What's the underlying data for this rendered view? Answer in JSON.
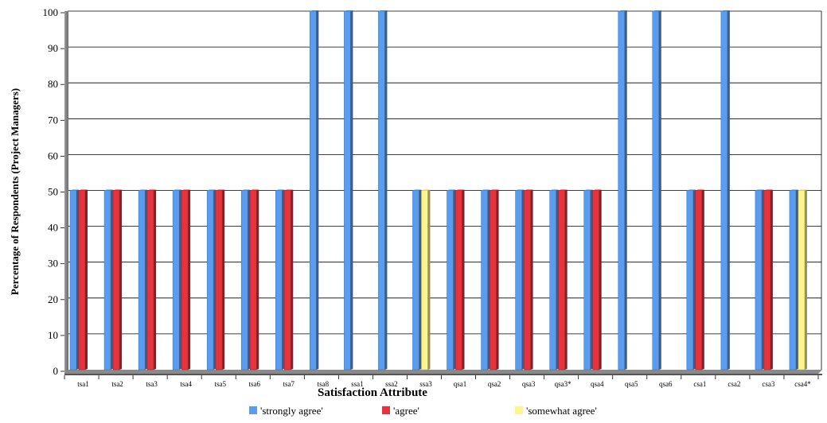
{
  "chart_data": {
    "type": "bar",
    "title": "",
    "xlabel": "Satisfaction Attribute",
    "ylabel": "Percentage of Respondents (Project Managers)",
    "ylim": [
      0,
      100
    ],
    "yticks": [
      0,
      10,
      20,
      30,
      40,
      50,
      60,
      70,
      80,
      90,
      100
    ],
    "grid": true,
    "legend_position": "bottom",
    "categories": [
      "tsa1",
      "tsa2",
      "tsa3",
      "tsa4",
      "tsa5",
      "tsa6",
      "tsa7",
      "tsa8",
      "ssa1",
      "ssa2",
      "ssa3",
      "qsa1",
      "qsa2",
      "qsa3",
      "qsa3*",
      "qsa4",
      "qsa5",
      "qsa6",
      "csa1",
      "csa2",
      "csa3",
      "csa4*"
    ],
    "series": [
      {
        "name": "'strongly agree'",
        "color": "#5a9cf0",
        "values": [
          50,
          50,
          50,
          50,
          50,
          50,
          50,
          100,
          100,
          100,
          50,
          50,
          50,
          50,
          50,
          50,
          100,
          100,
          50,
          100,
          50,
          50
        ]
      },
      {
        "name": "'agree'",
        "color": "#e8323c",
        "values": [
          50,
          50,
          50,
          50,
          50,
          50,
          50,
          0,
          0,
          0,
          0,
          50,
          50,
          50,
          50,
          50,
          0,
          0,
          50,
          0,
          50,
          0
        ]
      },
      {
        "name": "'somewhat agree'",
        "color": "#fff58a",
        "values": [
          0,
          0,
          0,
          0,
          0,
          0,
          0,
          0,
          0,
          0,
          50,
          0,
          0,
          0,
          0,
          0,
          0,
          0,
          0,
          0,
          0,
          50
        ]
      }
    ]
  }
}
